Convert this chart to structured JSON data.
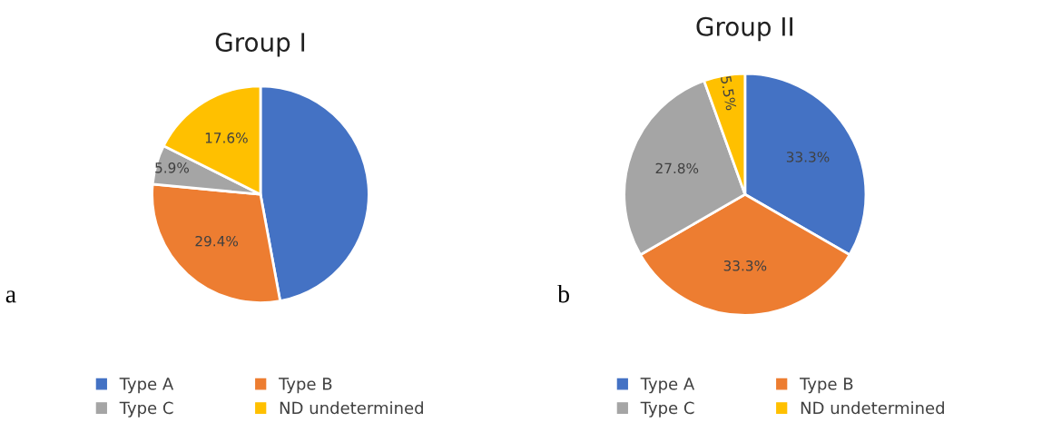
{
  "chart_data": [
    {
      "type": "pie",
      "title": "Group I",
      "categories": [
        "Type A",
        "Type B",
        "Type C",
        "ND undetermined"
      ],
      "values": [
        47.1,
        29.4,
        5.9,
        17.6
      ],
      "colors": [
        "#4472c4",
        "#ed7d31",
        "#a5a5a5",
        "#ffc000"
      ],
      "value_labels": [
        null,
        "29.4%",
        "5.9%",
        "17.6%"
      ],
      "legend": "bottom",
      "annotations": [
        "a"
      ]
    },
    {
      "type": "pie",
      "title": "Group II",
      "categories": [
        "Type A",
        "Type B",
        "Type C",
        "ND undetermined"
      ],
      "values": [
        33.3,
        33.3,
        27.8,
        5.5
      ],
      "colors": [
        "#4472c4",
        "#ed7d31",
        "#a5a5a5",
        "#ffc000"
      ],
      "value_labels": [
        "33.3%",
        "33.3%",
        "27.8%",
        "5.5%"
      ],
      "legend": "bottom",
      "annotations": [
        "b"
      ]
    }
  ]
}
